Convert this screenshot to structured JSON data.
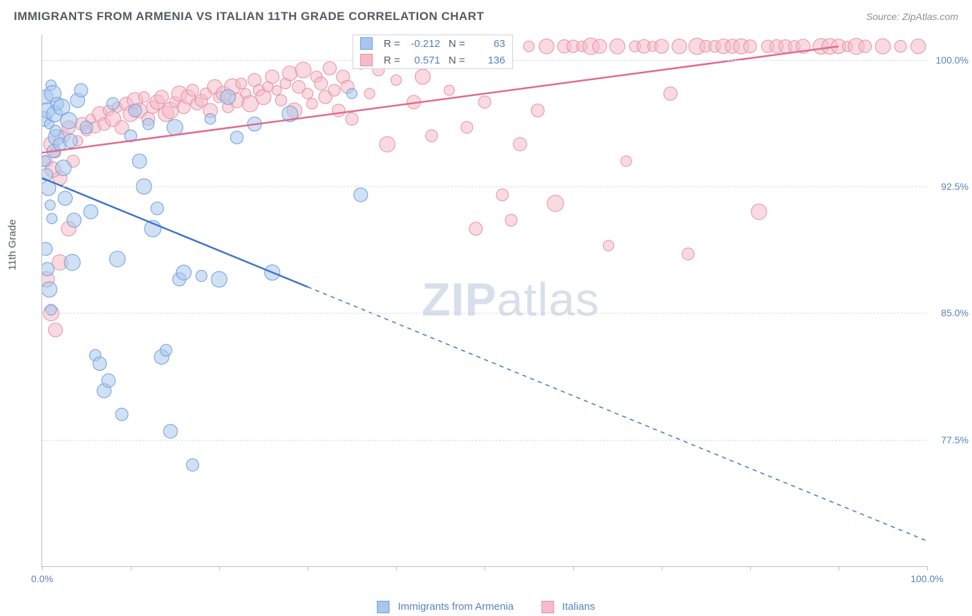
{
  "title": "IMMIGRANTS FROM ARMENIA VS ITALIAN 11TH GRADE CORRELATION CHART",
  "source": "Source: ZipAtlas.com",
  "watermark_a": "ZIP",
  "watermark_b": "atlas",
  "ylabel": "11th Grade",
  "chart": {
    "type": "scatter",
    "xlim": [
      0,
      100
    ],
    "ylim": [
      70,
      101.5
    ],
    "yticks": [
      77.5,
      85.0,
      92.5,
      100.0
    ],
    "ytick_labels": [
      "77.5%",
      "85.0%",
      "92.5%",
      "100.0%"
    ],
    "xticks": [
      0,
      10,
      20,
      30,
      40,
      50,
      60,
      70,
      80,
      90,
      100
    ],
    "xtick_labels_shown": {
      "0": "0.0%",
      "100": "100.0%"
    },
    "background_color": "#ffffff",
    "grid_color": "#d9dce0",
    "axis_color": "#b9bcc2",
    "label_color": "#5b7fbf",
    "label_fontsize": 14,
    "title_fontsize": 17
  },
  "series": {
    "armenia": {
      "label": "Immigrants from Armenia",
      "fill": "#a9c7ec",
      "stroke": "#6c9fd9",
      "line_color": "#3f74c7",
      "opacity": 0.55,
      "R": "-0.212",
      "N": "63",
      "trend": {
        "x1": 0,
        "y1": 93.0,
        "x2": 100,
        "y2": 71.5,
        "dash_after_x": 30
      },
      "points": [
        [
          0.2,
          96.5
        ],
        [
          0.4,
          97.8
        ],
        [
          0.6,
          97.0
        ],
        [
          0.8,
          96.2
        ],
        [
          1.0,
          98.5
        ],
        [
          1.2,
          98.0
        ],
        [
          1.4,
          96.8
        ],
        [
          1.6,
          95.4
        ],
        [
          0.3,
          94.0
        ],
        [
          0.5,
          93.2
        ],
        [
          0.7,
          92.4
        ],
        [
          0.9,
          91.4
        ],
        [
          1.1,
          90.6
        ],
        [
          1.3,
          94.6
        ],
        [
          1.5,
          95.8
        ],
        [
          1.7,
          97.4
        ],
        [
          0.4,
          88.8
        ],
        [
          0.6,
          87.6
        ],
        [
          0.8,
          86.4
        ],
        [
          1.0,
          85.2
        ],
        [
          2.0,
          95.0
        ],
        [
          2.2,
          97.2
        ],
        [
          2.4,
          93.6
        ],
        [
          2.6,
          91.8
        ],
        [
          3.0,
          96.4
        ],
        [
          3.2,
          95.2
        ],
        [
          3.4,
          88.0
        ],
        [
          3.6,
          90.5
        ],
        [
          4.0,
          97.6
        ],
        [
          4.4,
          98.2
        ],
        [
          5.0,
          96.0
        ],
        [
          5.5,
          91.0
        ],
        [
          6.0,
          82.5
        ],
        [
          6.5,
          82.0
        ],
        [
          7.0,
          80.4
        ],
        [
          7.5,
          81.0
        ],
        [
          8.0,
          97.4
        ],
        [
          8.5,
          88.2
        ],
        [
          9.0,
          79.0
        ],
        [
          10.0,
          95.5
        ],
        [
          10.5,
          97.0
        ],
        [
          11.0,
          94.0
        ],
        [
          11.5,
          92.5
        ],
        [
          12.0,
          96.2
        ],
        [
          12.5,
          90.0
        ],
        [
          13.0,
          91.2
        ],
        [
          13.5,
          82.4
        ],
        [
          14.0,
          82.8
        ],
        [
          14.5,
          78.0
        ],
        [
          15.0,
          96.0
        ],
        [
          15.5,
          87.0
        ],
        [
          16.0,
          87.4
        ],
        [
          17.0,
          76.0
        ],
        [
          18.0,
          87.2
        ],
        [
          19.0,
          96.5
        ],
        [
          20.0,
          87.0
        ],
        [
          21.0,
          97.8
        ],
        [
          22.0,
          95.4
        ],
        [
          24.0,
          96.2
        ],
        [
          26.0,
          87.4
        ],
        [
          28.0,
          96.8
        ],
        [
          35.0,
          98.0
        ],
        [
          36.0,
          92.0
        ]
      ]
    },
    "italians": {
      "label": "Italians",
      "fill": "#f4bcc9",
      "stroke": "#e88da2",
      "line_color": "#e26a8c",
      "opacity": 0.55,
      "R": "0.571",
      "N": "136",
      "trend": {
        "x1": 0,
        "y1": 94.5,
        "x2": 90,
        "y2": 100.8,
        "dash_after_x": 101
      },
      "points": [
        [
          0.5,
          94.0
        ],
        [
          1.0,
          95.0
        ],
        [
          1.5,
          94.5
        ],
        [
          2.0,
          93.0
        ],
        [
          2.5,
          95.5
        ],
        [
          3.0,
          96.0
        ],
        [
          3.5,
          94.0
        ],
        [
          4.0,
          95.2
        ],
        [
          4.5,
          96.2
        ],
        [
          5.0,
          95.8
        ],
        [
          5.5,
          96.5
        ],
        [
          6.0,
          96.0
        ],
        [
          6.5,
          96.8
        ],
        [
          7.0,
          96.2
        ],
        [
          7.5,
          97.0
        ],
        [
          8.0,
          96.5
        ],
        [
          8.5,
          97.2
        ],
        [
          9.0,
          96.0
        ],
        [
          9.5,
          97.4
        ],
        [
          10.0,
          96.8
        ],
        [
          10.5,
          97.6
        ],
        [
          11.0,
          97.0
        ],
        [
          11.5,
          97.8
        ],
        [
          12.0,
          96.5
        ],
        [
          12.5,
          97.2
        ],
        [
          13.0,
          97.5
        ],
        [
          13.5,
          97.8
        ],
        [
          14.0,
          96.8
        ],
        [
          14.5,
          97.0
        ],
        [
          15.0,
          97.5
        ],
        [
          15.5,
          98.0
        ],
        [
          16.0,
          97.2
        ],
        [
          16.5,
          97.8
        ],
        [
          17.0,
          98.2
        ],
        [
          17.5,
          97.4
        ],
        [
          18.0,
          97.6
        ],
        [
          18.5,
          98.0
        ],
        [
          19.0,
          97.0
        ],
        [
          19.5,
          98.4
        ],
        [
          20.0,
          97.8
        ],
        [
          20.5,
          98.0
        ],
        [
          21.0,
          97.2
        ],
        [
          21.5,
          98.4
        ],
        [
          22.0,
          97.6
        ],
        [
          22.5,
          98.6
        ],
        [
          23.0,
          98.0
        ],
        [
          23.5,
          97.4
        ],
        [
          24.0,
          98.8
        ],
        [
          24.5,
          98.2
        ],
        [
          25.0,
          97.8
        ],
        [
          25.5,
          98.4
        ],
        [
          26.0,
          99.0
        ],
        [
          26.5,
          98.2
        ],
        [
          27.0,
          97.6
        ],
        [
          27.5,
          98.6
        ],
        [
          28.0,
          99.2
        ],
        [
          28.5,
          97.0
        ],
        [
          29.0,
          98.4
        ],
        [
          29.5,
          99.4
        ],
        [
          30.0,
          98.0
        ],
        [
          30.5,
          97.4
        ],
        [
          31.0,
          99.0
        ],
        [
          31.5,
          98.6
        ],
        [
          32.0,
          97.8
        ],
        [
          32.5,
          99.5
        ],
        [
          33.0,
          98.2
        ],
        [
          33.5,
          97.0
        ],
        [
          34.0,
          99.0
        ],
        [
          34.5,
          98.4
        ],
        [
          35.0,
          96.5
        ],
        [
          36.0,
          99.8
        ],
        [
          37.0,
          98.0
        ],
        [
          38.0,
          99.4
        ],
        [
          39.0,
          95.0
        ],
        [
          40.0,
          98.8
        ],
        [
          41.0,
          100.8
        ],
        [
          42.0,
          97.5
        ],
        [
          43.0,
          99.0
        ],
        [
          44.0,
          95.5
        ],
        [
          45.0,
          100.8
        ],
        [
          46.0,
          98.2
        ],
        [
          47.0,
          100.8
        ],
        [
          48.0,
          96.0
        ],
        [
          49.0,
          90.0
        ],
        [
          50.0,
          97.5
        ],
        [
          51.0,
          100.8
        ],
        [
          52.0,
          92.0
        ],
        [
          53.0,
          90.5
        ],
        [
          54.0,
          95.0
        ],
        [
          55.0,
          100.8
        ],
        [
          56.0,
          97.0
        ],
        [
          57.0,
          100.8
        ],
        [
          58.0,
          91.5
        ],
        [
          59.0,
          100.8
        ],
        [
          60.0,
          100.8
        ],
        [
          61.0,
          100.8
        ],
        [
          62.0,
          100.8
        ],
        [
          63.0,
          100.8
        ],
        [
          64.0,
          89.0
        ],
        [
          65.0,
          100.8
        ],
        [
          66.0,
          94.0
        ],
        [
          67.0,
          100.8
        ],
        [
          68.0,
          100.8
        ],
        [
          69.0,
          100.8
        ],
        [
          70.0,
          100.8
        ],
        [
          71.0,
          98.0
        ],
        [
          72.0,
          100.8
        ],
        [
          73.0,
          88.5
        ],
        [
          74.0,
          100.8
        ],
        [
          75.0,
          100.8
        ],
        [
          76.0,
          100.8
        ],
        [
          77.0,
          100.8
        ],
        [
          78.0,
          100.8
        ],
        [
          79.0,
          100.8
        ],
        [
          80.0,
          100.8
        ],
        [
          81.0,
          91.0
        ],
        [
          82.0,
          100.8
        ],
        [
          83.0,
          100.8
        ],
        [
          84.0,
          100.8
        ],
        [
          85.0,
          100.8
        ],
        [
          86.0,
          100.8
        ],
        [
          88.0,
          100.8
        ],
        [
          89.0,
          100.8
        ],
        [
          90.0,
          100.8
        ],
        [
          91.0,
          100.8
        ],
        [
          92.0,
          100.8
        ],
        [
          93.0,
          100.8
        ],
        [
          95.0,
          100.8
        ],
        [
          97.0,
          100.8
        ],
        [
          99.0,
          100.8
        ],
        [
          1.0,
          85.0
        ],
        [
          1.5,
          84.0
        ],
        [
          2.0,
          88.0
        ],
        [
          3.0,
          90.0
        ],
        [
          0.5,
          87.0
        ],
        [
          1.2,
          93.5
        ]
      ]
    }
  }
}
